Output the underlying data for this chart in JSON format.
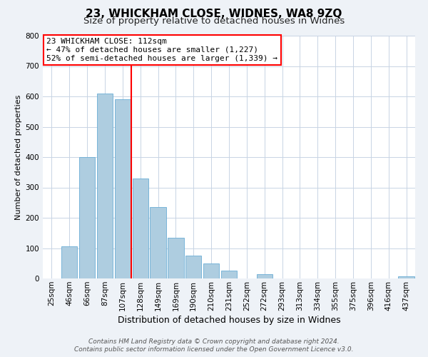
{
  "title": "23, WHICKHAM CLOSE, WIDNES, WA8 9ZQ",
  "subtitle": "Size of property relative to detached houses in Widnes",
  "xlabel": "Distribution of detached houses by size in Widnes",
  "ylabel": "Number of detached properties",
  "bar_labels": [
    "25sqm",
    "46sqm",
    "66sqm",
    "87sqm",
    "107sqm",
    "128sqm",
    "149sqm",
    "169sqm",
    "190sqm",
    "210sqm",
    "231sqm",
    "252sqm",
    "272sqm",
    "293sqm",
    "313sqm",
    "334sqm",
    "355sqm",
    "375sqm",
    "396sqm",
    "416sqm",
    "437sqm"
  ],
  "bar_values": [
    0,
    105,
    400,
    610,
    590,
    330,
    235,
    135,
    75,
    50,
    25,
    0,
    15,
    0,
    0,
    0,
    0,
    0,
    0,
    0,
    8
  ],
  "bar_color": "#aecde0",
  "bar_edge_color": "#6aadd5",
  "vline_x": 4.5,
  "vline_color": "red",
  "annotation_text": "23 WHICKHAM CLOSE: 112sqm\n← 47% of detached houses are smaller (1,227)\n52% of semi-detached houses are larger (1,339) →",
  "annotation_box_color": "white",
  "annotation_box_edge_color": "red",
  "footer_line1": "Contains HM Land Registry data © Crown copyright and database right 2024.",
  "footer_line2": "Contains public sector information licensed under the Open Government Licence v3.0.",
  "ylim": [
    0,
    800
  ],
  "yticks": [
    0,
    100,
    200,
    300,
    400,
    500,
    600,
    700,
    800
  ],
  "title_fontsize": 11,
  "subtitle_fontsize": 9.5,
  "xlabel_fontsize": 9,
  "ylabel_fontsize": 8,
  "tick_fontsize": 7.5,
  "annotation_fontsize": 8,
  "footer_fontsize": 6.5,
  "background_color": "#eef2f7",
  "plot_bg_color": "#ffffff",
  "grid_color": "#c8d4e4"
}
